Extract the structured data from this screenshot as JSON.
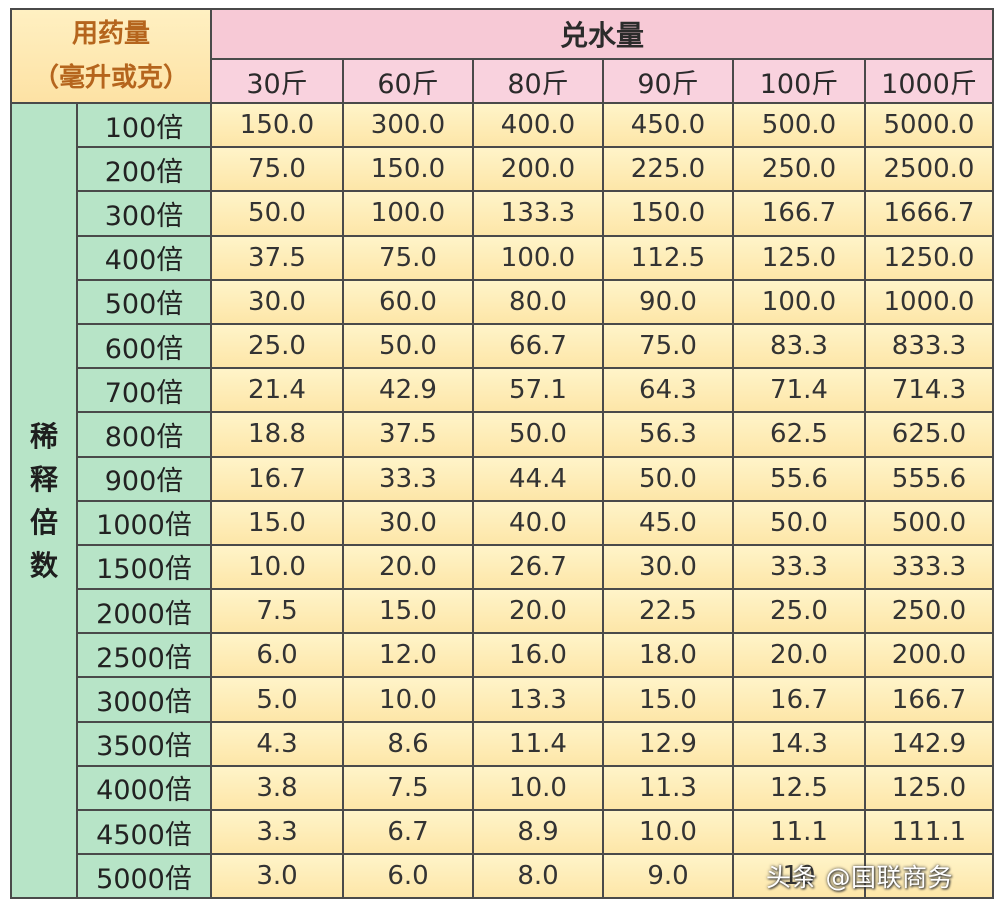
{
  "table": {
    "corner_line1": "用药量",
    "corner_line2": "（毫升或克）",
    "water_header": "兑水量",
    "side_label": [
      "稀",
      "释",
      "倍",
      "数"
    ],
    "columns": [
      "30斤",
      "60斤",
      "80斤",
      "90斤",
      "100斤",
      "1000斤"
    ],
    "rows": [
      {
        "label": "100倍",
        "values": [
          "150.0",
          "300.0",
          "400.0",
          "450.0",
          "500.0",
          "5000.0"
        ]
      },
      {
        "label": "200倍",
        "values": [
          "75.0",
          "150.0",
          "200.0",
          "225.0",
          "250.0",
          "2500.0"
        ]
      },
      {
        "label": "300倍",
        "values": [
          "50.0",
          "100.0",
          "133.3",
          "150.0",
          "166.7",
          "1666.7"
        ]
      },
      {
        "label": "400倍",
        "values": [
          "37.5",
          "75.0",
          "100.0",
          "112.5",
          "125.0",
          "1250.0"
        ]
      },
      {
        "label": "500倍",
        "values": [
          "30.0",
          "60.0",
          "80.0",
          "90.0",
          "100.0",
          "1000.0"
        ]
      },
      {
        "label": "600倍",
        "values": [
          "25.0",
          "50.0",
          "66.7",
          "75.0",
          "83.3",
          "833.3"
        ]
      },
      {
        "label": "700倍",
        "values": [
          "21.4",
          "42.9",
          "57.1",
          "64.3",
          "71.4",
          "714.3"
        ]
      },
      {
        "label": "800倍",
        "values": [
          "18.8",
          "37.5",
          "50.0",
          "56.3",
          "62.5",
          "625.0"
        ]
      },
      {
        "label": "900倍",
        "values": [
          "16.7",
          "33.3",
          "44.4",
          "50.0",
          "55.6",
          "555.6"
        ]
      },
      {
        "label": "1000倍",
        "values": [
          "15.0",
          "30.0",
          "40.0",
          "45.0",
          "50.0",
          "500.0"
        ]
      },
      {
        "label": "1500倍",
        "values": [
          "10.0",
          "20.0",
          "26.7",
          "30.0",
          "33.3",
          "333.3"
        ]
      },
      {
        "label": "2000倍",
        "values": [
          "7.5",
          "15.0",
          "20.0",
          "22.5",
          "25.0",
          "250.0"
        ]
      },
      {
        "label": "2500倍",
        "values": [
          "6.0",
          "12.0",
          "16.0",
          "18.0",
          "20.0",
          "200.0"
        ]
      },
      {
        "label": "3000倍",
        "values": [
          "5.0",
          "10.0",
          "13.3",
          "15.0",
          "16.7",
          "166.7"
        ]
      },
      {
        "label": "3500倍",
        "values": [
          "4.3",
          "8.6",
          "11.4",
          "12.9",
          "14.3",
          "142.9"
        ]
      },
      {
        "label": "4000倍",
        "values": [
          "3.8",
          "7.5",
          "10.0",
          "11.3",
          "12.5",
          "125.0"
        ]
      },
      {
        "label": "4500倍",
        "values": [
          "3.3",
          "6.7",
          "8.9",
          "10.0",
          "11.1",
          "111.1"
        ]
      },
      {
        "label": "5000倍",
        "values": [
          "3.0",
          "6.0",
          "8.0",
          "9.0",
          "10",
          ""
        ]
      }
    ]
  },
  "watermark": "头条 @国联商务"
}
